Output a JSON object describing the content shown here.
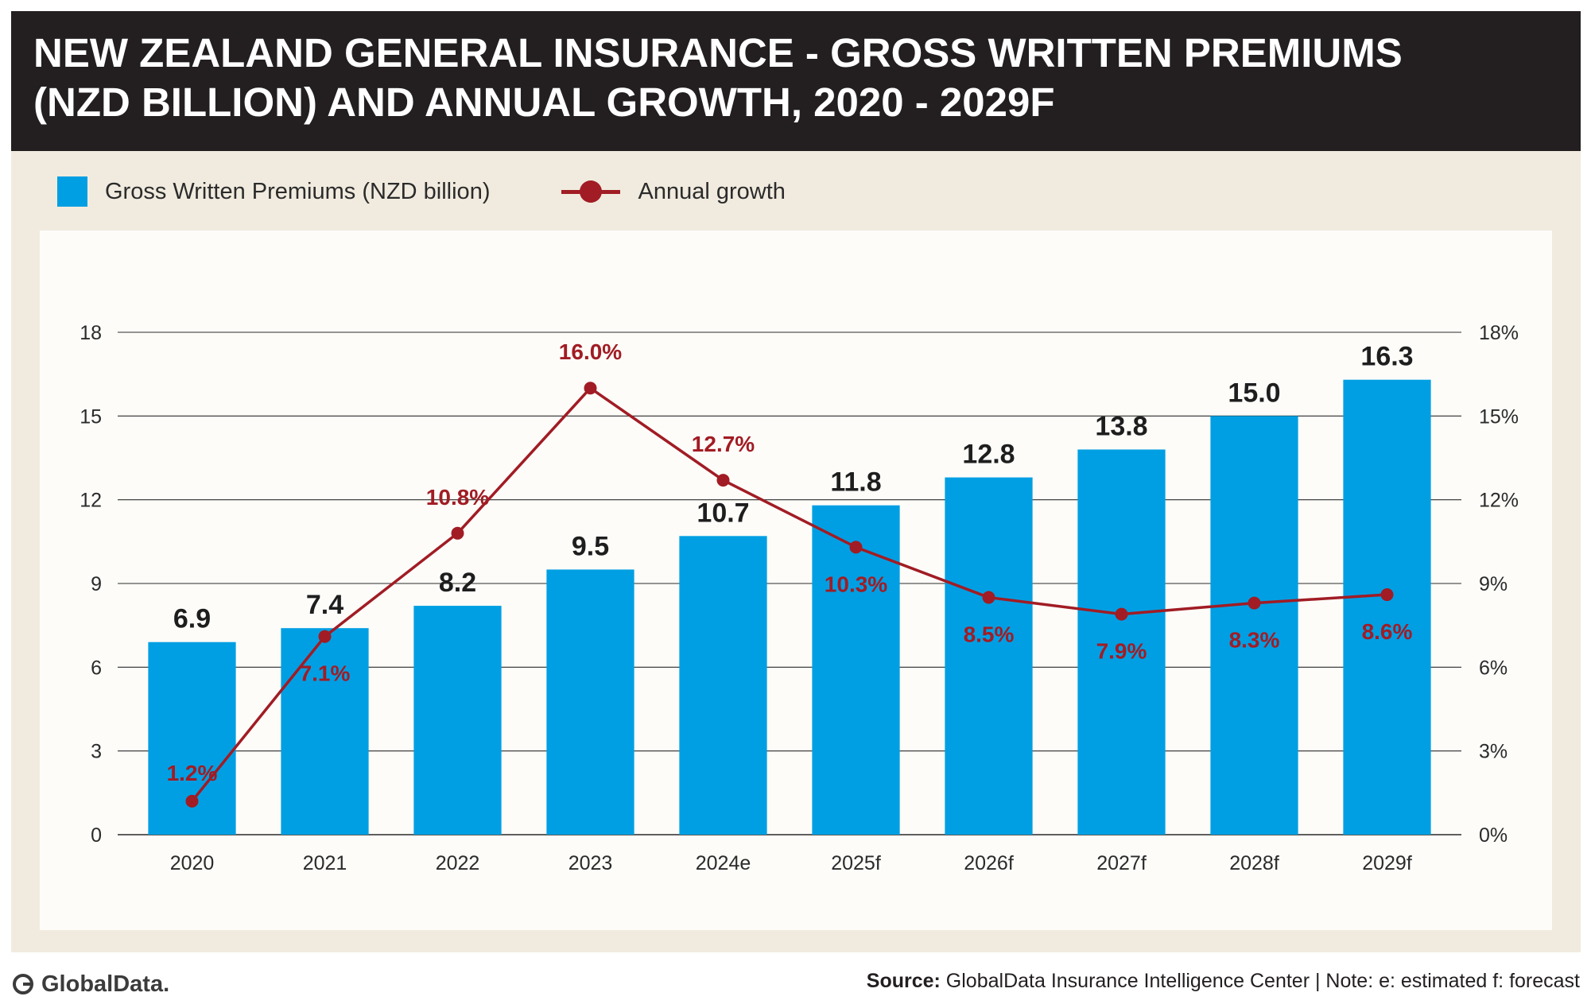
{
  "title_lines": [
    "NEW ZEALAND GENERAL INSURANCE - GROSS WRITTEN PREMIUMS",
    "(NZD BILLION) AND ANNUAL GROWTH, 2020 - 2029F"
  ],
  "legend": {
    "bar_label": "Gross Written Premiums (NZD billion)",
    "line_label": "Annual growth"
  },
  "footer": {
    "logo_text": "GlobalData.",
    "source_label": "Source:",
    "source_text": " GlobalData Insurance Intelligence Center | Note: e: estimated f: forecast"
  },
  "colors": {
    "bar": "#009fe3",
    "line": "#a11c24",
    "grid": "#2b2b2b",
    "title_bg": "#231f20",
    "frame_bg": "#f1ebdf"
  },
  "chart_data": {
    "type": "bar",
    "categories": [
      "2020",
      "2021",
      "2022",
      "2023",
      "2024e",
      "2025f",
      "2026f",
      "2027f",
      "2028f",
      "2029f"
    ],
    "series": [
      {
        "name": "Gross Written Premiums (NZD billion)",
        "type": "bar",
        "axis": "left",
        "values": [
          6.9,
          7.4,
          8.2,
          9.5,
          10.7,
          11.8,
          12.8,
          13.8,
          15.0,
          16.3
        ],
        "labels": [
          "6.9",
          "7.4",
          "8.2",
          "9.5",
          "10.7",
          "11.8",
          "12.8",
          "13.8",
          "15.0",
          "16.3"
        ]
      },
      {
        "name": "Annual growth",
        "type": "line",
        "axis": "right",
        "values": [
          1.2,
          7.1,
          10.8,
          16.0,
          12.7,
          10.3,
          8.5,
          7.9,
          8.3,
          8.6
        ],
        "labels": [
          "1.2%",
          "7.1%",
          "10.8%",
          "16.0%",
          "12.7%",
          "10.3%",
          "8.5%",
          "7.9%",
          "8.3%",
          "8.6%"
        ]
      }
    ],
    "y_left": {
      "min": 0,
      "max": 18,
      "ticks": [
        "0",
        "3",
        "6",
        "9",
        "12",
        "15",
        "18"
      ]
    },
    "y_right": {
      "min": 0,
      "max": 18,
      "ticks": [
        "0%",
        "3%",
        "6%",
        "9%",
        "12%",
        "15%",
        "18%"
      ]
    },
    "grid": true,
    "legend_position": "top-left"
  }
}
